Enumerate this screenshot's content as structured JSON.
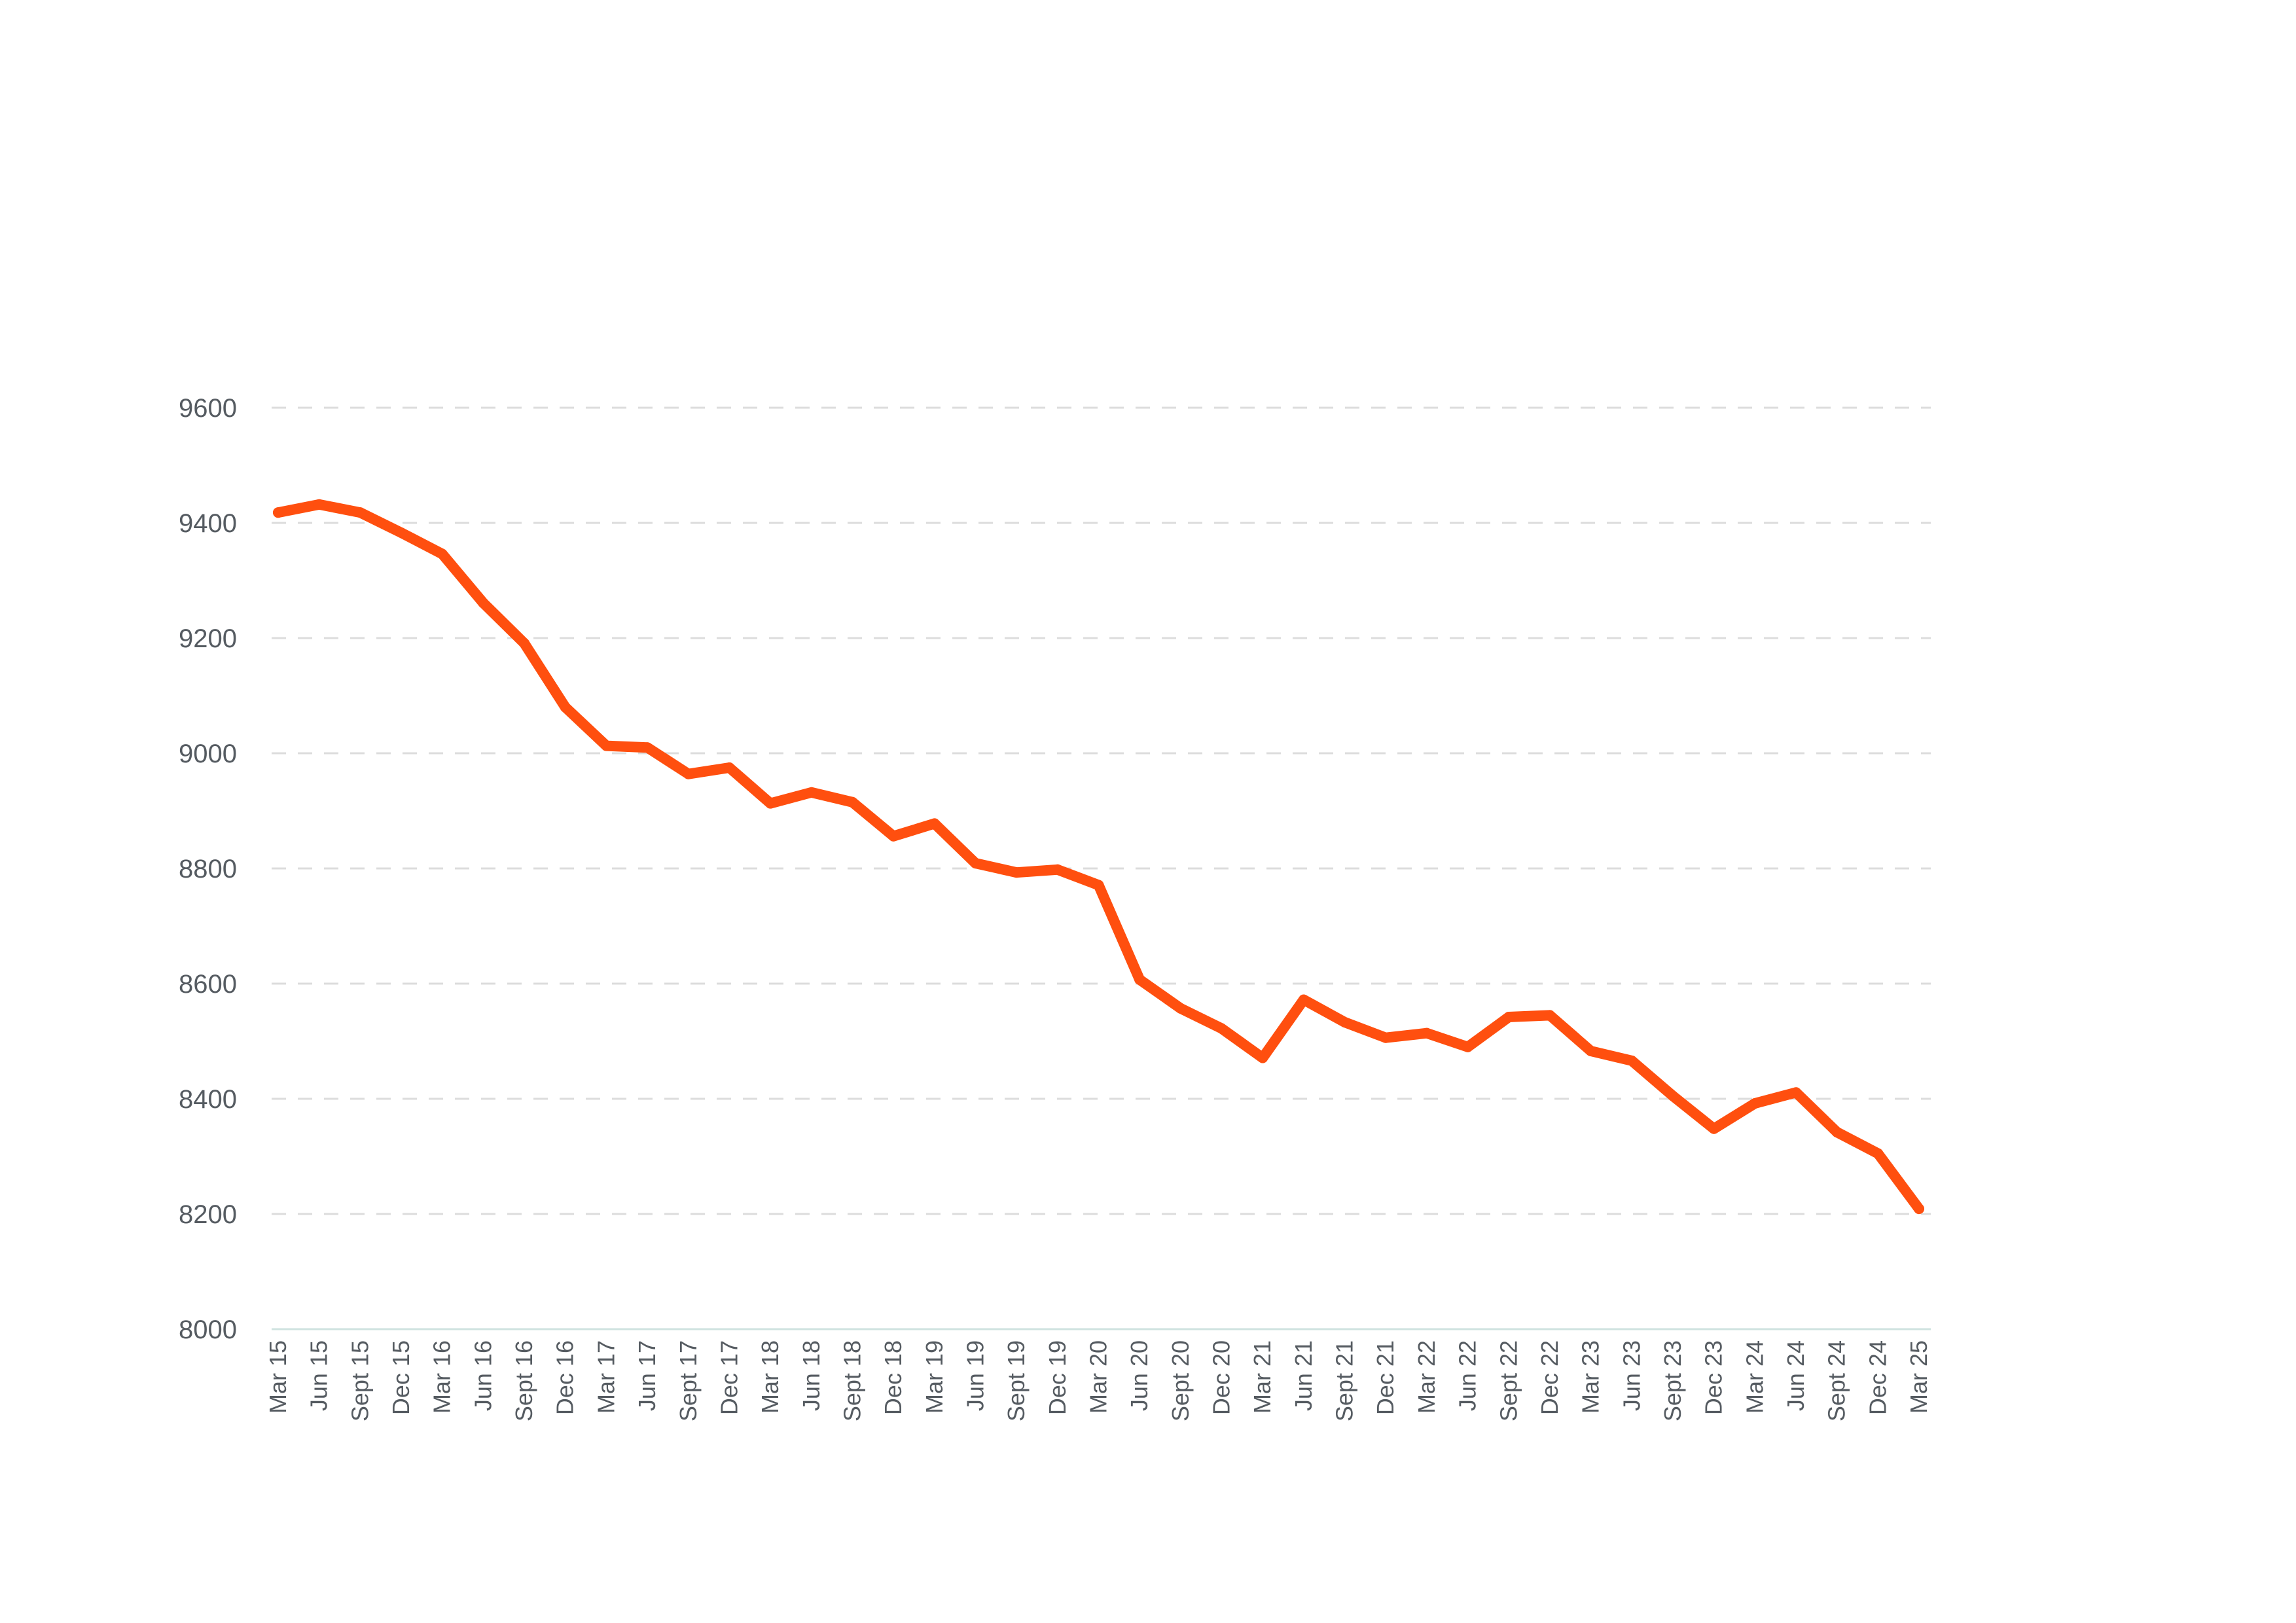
{
  "chart_data": {
    "type": "line",
    "title": "",
    "xlabel": "",
    "ylabel": "",
    "ylim": [
      8000,
      9600
    ],
    "yticks": [
      8000,
      8200,
      8400,
      8600,
      8800,
      9000,
      9200,
      9400,
      9600
    ],
    "grid": true,
    "legend": "none",
    "categories": [
      "Mar 15",
      "Jun 15",
      "Sept 15",
      "Dec 15",
      "Mar 16",
      "Jun 16",
      "Sept 16",
      "Dec 16",
      "Mar 17",
      "Jun 17",
      "Sept 17",
      "Dec 17",
      "Mar 18",
      "Jun 18",
      "Sept 18",
      "Dec 18",
      "Mar 19",
      "Jun 19",
      "Sept 19",
      "Dec 19",
      "Mar 20",
      "Jun 20",
      "Sept 20",
      "Dec 20",
      "Mar 21",
      "Jun 21",
      "Sept 21",
      "Dec 21",
      "Mar 22",
      "Jun 22",
      "Sept 22",
      "Dec 22",
      "Mar 23",
      "Jun 23",
      "Sept 23",
      "Dec 23",
      "Mar 24",
      "Jun 24",
      "Sept 24",
      "Dec 24",
      "Mar 25"
    ],
    "series": [
      {
        "color": "#ff4f0f",
        "values": [
          9418,
          9432,
          9418,
          9383,
          9346,
          9261,
          9191,
          9080,
          9013,
          9010,
          8964,
          8975,
          8913,
          8932,
          8915,
          8856,
          8878,
          8809,
          8793,
          8798,
          8771,
          8607,
          8557,
          8522,
          8471,
          8572,
          8533,
          8506,
          8514,
          8490,
          8542,
          8545,
          8483,
          8466,
          8405,
          8348,
          8392,
          8411,
          8342,
          8305,
          8209
        ]
      }
    ]
  }
}
